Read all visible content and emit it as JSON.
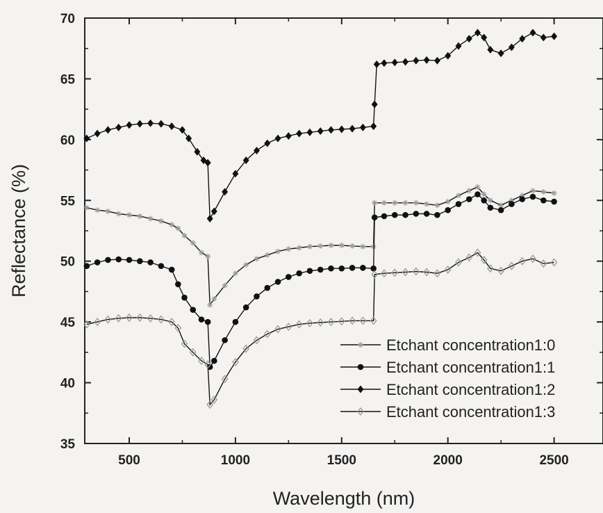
{
  "chart_data": {
    "type": "line",
    "xlabel": "Wavelength (nm)",
    "ylabel": "Reflectance (%)",
    "xlim": [
      300,
      2520
    ],
    "ylim": [
      35,
      70
    ],
    "xticks": [
      500,
      1000,
      1500,
      2000,
      2500
    ],
    "yticks": [
      35,
      40,
      45,
      50,
      55,
      60,
      65,
      70
    ],
    "grid": false,
    "legend": "bottom-right",
    "series": [
      {
        "name": "Etchant concentration1:0",
        "marker": "star",
        "color": "#999999",
        "points": [
          [
            300,
            54.4
          ],
          [
            350,
            54.2
          ],
          [
            400,
            54.1
          ],
          [
            450,
            53.9
          ],
          [
            500,
            53.8
          ],
          [
            550,
            53.7
          ],
          [
            600,
            53.5
          ],
          [
            650,
            53.3
          ],
          [
            700,
            53.0
          ],
          [
            730,
            52.7
          ],
          [
            760,
            52.1
          ],
          [
            800,
            51.5
          ],
          [
            840,
            50.7
          ],
          [
            870,
            50.4
          ],
          [
            880,
            46.4
          ],
          [
            900,
            46.9
          ],
          [
            950,
            48.0
          ],
          [
            1000,
            49.0
          ],
          [
            1050,
            49.7
          ],
          [
            1100,
            50.2
          ],
          [
            1150,
            50.5
          ],
          [
            1200,
            50.8
          ],
          [
            1250,
            51.0
          ],
          [
            1300,
            51.1
          ],
          [
            1350,
            51.2
          ],
          [
            1400,
            51.25
          ],
          [
            1450,
            51.3
          ],
          [
            1500,
            51.3
          ],
          [
            1550,
            51.25
          ],
          [
            1600,
            51.2
          ],
          [
            1650,
            51.2
          ],
          [
            1655,
            54.8
          ],
          [
            1700,
            54.8
          ],
          [
            1750,
            54.8
          ],
          [
            1800,
            54.8
          ],
          [
            1850,
            54.8
          ],
          [
            1900,
            54.7
          ],
          [
            1950,
            54.6
          ],
          [
            2000,
            54.9
          ],
          [
            2050,
            55.4
          ],
          [
            2100,
            55.8
          ],
          [
            2140,
            56.1
          ],
          [
            2170,
            55.5
          ],
          [
            2200,
            55.0
          ],
          [
            2250,
            54.6
          ],
          [
            2300,
            55.0
          ],
          [
            2350,
            55.4
          ],
          [
            2400,
            55.8
          ],
          [
            2450,
            55.7
          ],
          [
            2500,
            55.6
          ]
        ]
      },
      {
        "name": "Etchant concentration1:1",
        "marker": "circle",
        "color": "#111111",
        "points": [
          [
            300,
            49.6
          ],
          [
            350,
            49.9
          ],
          [
            400,
            50.1
          ],
          [
            450,
            50.15
          ],
          [
            500,
            50.1
          ],
          [
            550,
            50.0
          ],
          [
            600,
            49.9
          ],
          [
            650,
            49.6
          ],
          [
            700,
            49.3
          ],
          [
            730,
            48.1
          ],
          [
            760,
            47.0
          ],
          [
            800,
            46.0
          ],
          [
            840,
            45.2
          ],
          [
            870,
            45.0
          ],
          [
            880,
            41.3
          ],
          [
            900,
            41.8
          ],
          [
            950,
            43.5
          ],
          [
            1000,
            45.0
          ],
          [
            1050,
            46.2
          ],
          [
            1100,
            47.1
          ],
          [
            1150,
            47.8
          ],
          [
            1200,
            48.3
          ],
          [
            1250,
            48.7
          ],
          [
            1300,
            49.0
          ],
          [
            1350,
            49.2
          ],
          [
            1400,
            49.3
          ],
          [
            1450,
            49.4
          ],
          [
            1500,
            49.4
          ],
          [
            1550,
            49.45
          ],
          [
            1600,
            49.45
          ],
          [
            1650,
            49.4
          ],
          [
            1655,
            53.6
          ],
          [
            1700,
            53.7
          ],
          [
            1750,
            53.8
          ],
          [
            1800,
            53.8
          ],
          [
            1850,
            53.9
          ],
          [
            1900,
            53.9
          ],
          [
            1950,
            53.8
          ],
          [
            2000,
            54.2
          ],
          [
            2050,
            54.7
          ],
          [
            2100,
            55.1
          ],
          [
            2140,
            55.5
          ],
          [
            2170,
            55.0
          ],
          [
            2200,
            54.4
          ],
          [
            2250,
            54.2
          ],
          [
            2300,
            54.7
          ],
          [
            2350,
            55.1
          ],
          [
            2400,
            55.3
          ],
          [
            2450,
            55.0
          ],
          [
            2500,
            54.9
          ]
        ]
      },
      {
        "name": "Etchant concentration1:2",
        "marker": "diamond",
        "color": "#111111",
        "points": [
          [
            300,
            60.1
          ],
          [
            350,
            60.5
          ],
          [
            400,
            60.8
          ],
          [
            450,
            61.0
          ],
          [
            500,
            61.2
          ],
          [
            550,
            61.3
          ],
          [
            600,
            61.35
          ],
          [
            650,
            61.3
          ],
          [
            700,
            61.1
          ],
          [
            750,
            60.8
          ],
          [
            780,
            60.1
          ],
          [
            820,
            59.0
          ],
          [
            850,
            58.3
          ],
          [
            870,
            58.1
          ],
          [
            880,
            53.5
          ],
          [
            900,
            54.1
          ],
          [
            950,
            55.7
          ],
          [
            1000,
            57.2
          ],
          [
            1050,
            58.3
          ],
          [
            1100,
            59.1
          ],
          [
            1150,
            59.7
          ],
          [
            1200,
            60.1
          ],
          [
            1250,
            60.3
          ],
          [
            1300,
            60.5
          ],
          [
            1350,
            60.6
          ],
          [
            1400,
            60.7
          ],
          [
            1450,
            60.8
          ],
          [
            1500,
            60.85
          ],
          [
            1550,
            60.9
          ],
          [
            1600,
            61.0
          ],
          [
            1650,
            61.1
          ],
          [
            1655,
            62.9
          ],
          [
            1665,
            66.2
          ],
          [
            1700,
            66.3
          ],
          [
            1750,
            66.35
          ],
          [
            1800,
            66.4
          ],
          [
            1850,
            66.5
          ],
          [
            1900,
            66.55
          ],
          [
            1950,
            66.5
          ],
          [
            2000,
            66.9
          ],
          [
            2050,
            67.7
          ],
          [
            2100,
            68.3
          ],
          [
            2140,
            68.8
          ],
          [
            2170,
            68.4
          ],
          [
            2200,
            67.4
          ],
          [
            2250,
            67.1
          ],
          [
            2300,
            67.6
          ],
          [
            2350,
            68.3
          ],
          [
            2400,
            68.8
          ],
          [
            2450,
            68.4
          ],
          [
            2500,
            68.5
          ]
        ]
      },
      {
        "name": "Etchant concentration1:3",
        "marker": "open-diamond",
        "color": "#999999",
        "points": [
          [
            300,
            44.8
          ],
          [
            350,
            45.0
          ],
          [
            400,
            45.2
          ],
          [
            450,
            45.3
          ],
          [
            500,
            45.35
          ],
          [
            550,
            45.35
          ],
          [
            600,
            45.3
          ],
          [
            650,
            45.2
          ],
          [
            700,
            45.0
          ],
          [
            730,
            44.5
          ],
          [
            760,
            43.2
          ],
          [
            800,
            42.5
          ],
          [
            840,
            41.8
          ],
          [
            870,
            41.5
          ],
          [
            880,
            38.2
          ],
          [
            900,
            38.6
          ],
          [
            950,
            40.3
          ],
          [
            1000,
            41.7
          ],
          [
            1050,
            42.8
          ],
          [
            1100,
            43.5
          ],
          [
            1150,
            44.0
          ],
          [
            1200,
            44.4
          ],
          [
            1250,
            44.6
          ],
          [
            1300,
            44.8
          ],
          [
            1350,
            44.9
          ],
          [
            1400,
            44.95
          ],
          [
            1450,
            45.0
          ],
          [
            1500,
            45.05
          ],
          [
            1550,
            45.1
          ],
          [
            1600,
            45.1
          ],
          [
            1650,
            45.1
          ],
          [
            1655,
            48.9
          ],
          [
            1700,
            49.0
          ],
          [
            1750,
            49.05
          ],
          [
            1800,
            49.1
          ],
          [
            1850,
            49.15
          ],
          [
            1900,
            49.1
          ],
          [
            1950,
            49.0
          ],
          [
            2000,
            49.3
          ],
          [
            2050,
            49.9
          ],
          [
            2100,
            50.3
          ],
          [
            2140,
            50.7
          ],
          [
            2170,
            50.1
          ],
          [
            2200,
            49.4
          ],
          [
            2250,
            49.2
          ],
          [
            2300,
            49.6
          ],
          [
            2350,
            50.0
          ],
          [
            2400,
            50.2
          ],
          [
            2450,
            49.8
          ],
          [
            2500,
            49.9
          ]
        ]
      }
    ]
  }
}
